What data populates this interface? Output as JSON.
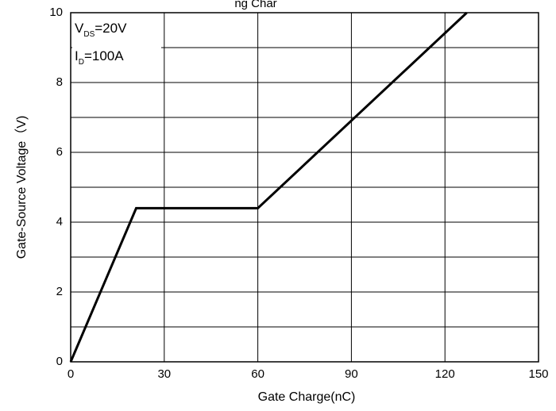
{
  "chart_data": {
    "type": "line",
    "title": "ng Char",
    "xlabel": "Gate Charge(nC)",
    "ylabel": "Gate-Source Voltage（V)",
    "xlim": [
      0,
      150
    ],
    "ylim": [
      0,
      10
    ],
    "x_ticks": [
      "0",
      "30",
      "60",
      "90",
      "120",
      "150"
    ],
    "y_ticks": [
      "0",
      "2",
      "4",
      "6",
      "8",
      "10"
    ],
    "grid": true,
    "series": [
      {
        "x": [
          0,
          21,
          60,
          127
        ],
        "y": [
          0,
          4.4,
          4.4,
          10
        ]
      }
    ],
    "annotation": {
      "line1": {
        "main": "V",
        "sub": "DS",
        "rest": "=20V"
      },
      "line2": {
        "main": "I",
        "sub": "D",
        "rest": "=100A"
      }
    }
  }
}
